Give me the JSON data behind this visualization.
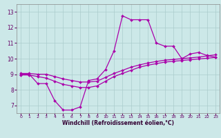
{
  "xlabel": "Windchill (Refroidissement éolien,°C)",
  "xlim": [
    -0.5,
    23.5
  ],
  "ylim": [
    6.5,
    13.5
  ],
  "yticks": [
    7,
    8,
    9,
    10,
    11,
    12,
    13
  ],
  "xticks": [
    0,
    1,
    2,
    3,
    4,
    5,
    6,
    7,
    8,
    9,
    10,
    11,
    12,
    13,
    14,
    15,
    16,
    17,
    18,
    19,
    20,
    21,
    22,
    23
  ],
  "bg_color": "#cce8e8",
  "line_color": "#aa00aa",
  "grid_color": "#aacccc",
  "line1_x": [
    0,
    1,
    2,
    3,
    4,
    5,
    6,
    7,
    8,
    9,
    10,
    11,
    12,
    13,
    14,
    15,
    16,
    17,
    18,
    19,
    20,
    21,
    22,
    23
  ],
  "line1_y": [
    9.0,
    9.0,
    8.4,
    8.4,
    7.3,
    6.7,
    6.7,
    6.9,
    8.6,
    8.7,
    9.3,
    10.5,
    12.75,
    12.5,
    12.5,
    12.5,
    11.0,
    10.8,
    10.8,
    10.0,
    10.3,
    10.4,
    10.2,
    10.1
  ],
  "line2_x": [
    0,
    1,
    2,
    3,
    4,
    5,
    6,
    7,
    8,
    9,
    10,
    11,
    12,
    13,
    14,
    15,
    16,
    17,
    18,
    19,
    20,
    21,
    22,
    23
  ],
  "line2_y": [
    9.05,
    9.05,
    9.0,
    9.0,
    8.85,
    8.7,
    8.6,
    8.5,
    8.5,
    8.55,
    8.8,
    9.05,
    9.25,
    9.45,
    9.6,
    9.72,
    9.82,
    9.9,
    9.95,
    10.0,
    10.05,
    10.1,
    10.18,
    10.25
  ],
  "line3_x": [
    0,
    1,
    2,
    3,
    4,
    5,
    6,
    7,
    8,
    9,
    10,
    11,
    12,
    13,
    14,
    15,
    16,
    17,
    18,
    19,
    20,
    21,
    22,
    23
  ],
  "line3_y": [
    8.95,
    8.95,
    8.85,
    8.75,
    8.55,
    8.35,
    8.25,
    8.15,
    8.15,
    8.25,
    8.55,
    8.85,
    9.05,
    9.25,
    9.45,
    9.58,
    9.68,
    9.78,
    9.83,
    9.88,
    9.93,
    9.98,
    10.03,
    10.08
  ]
}
